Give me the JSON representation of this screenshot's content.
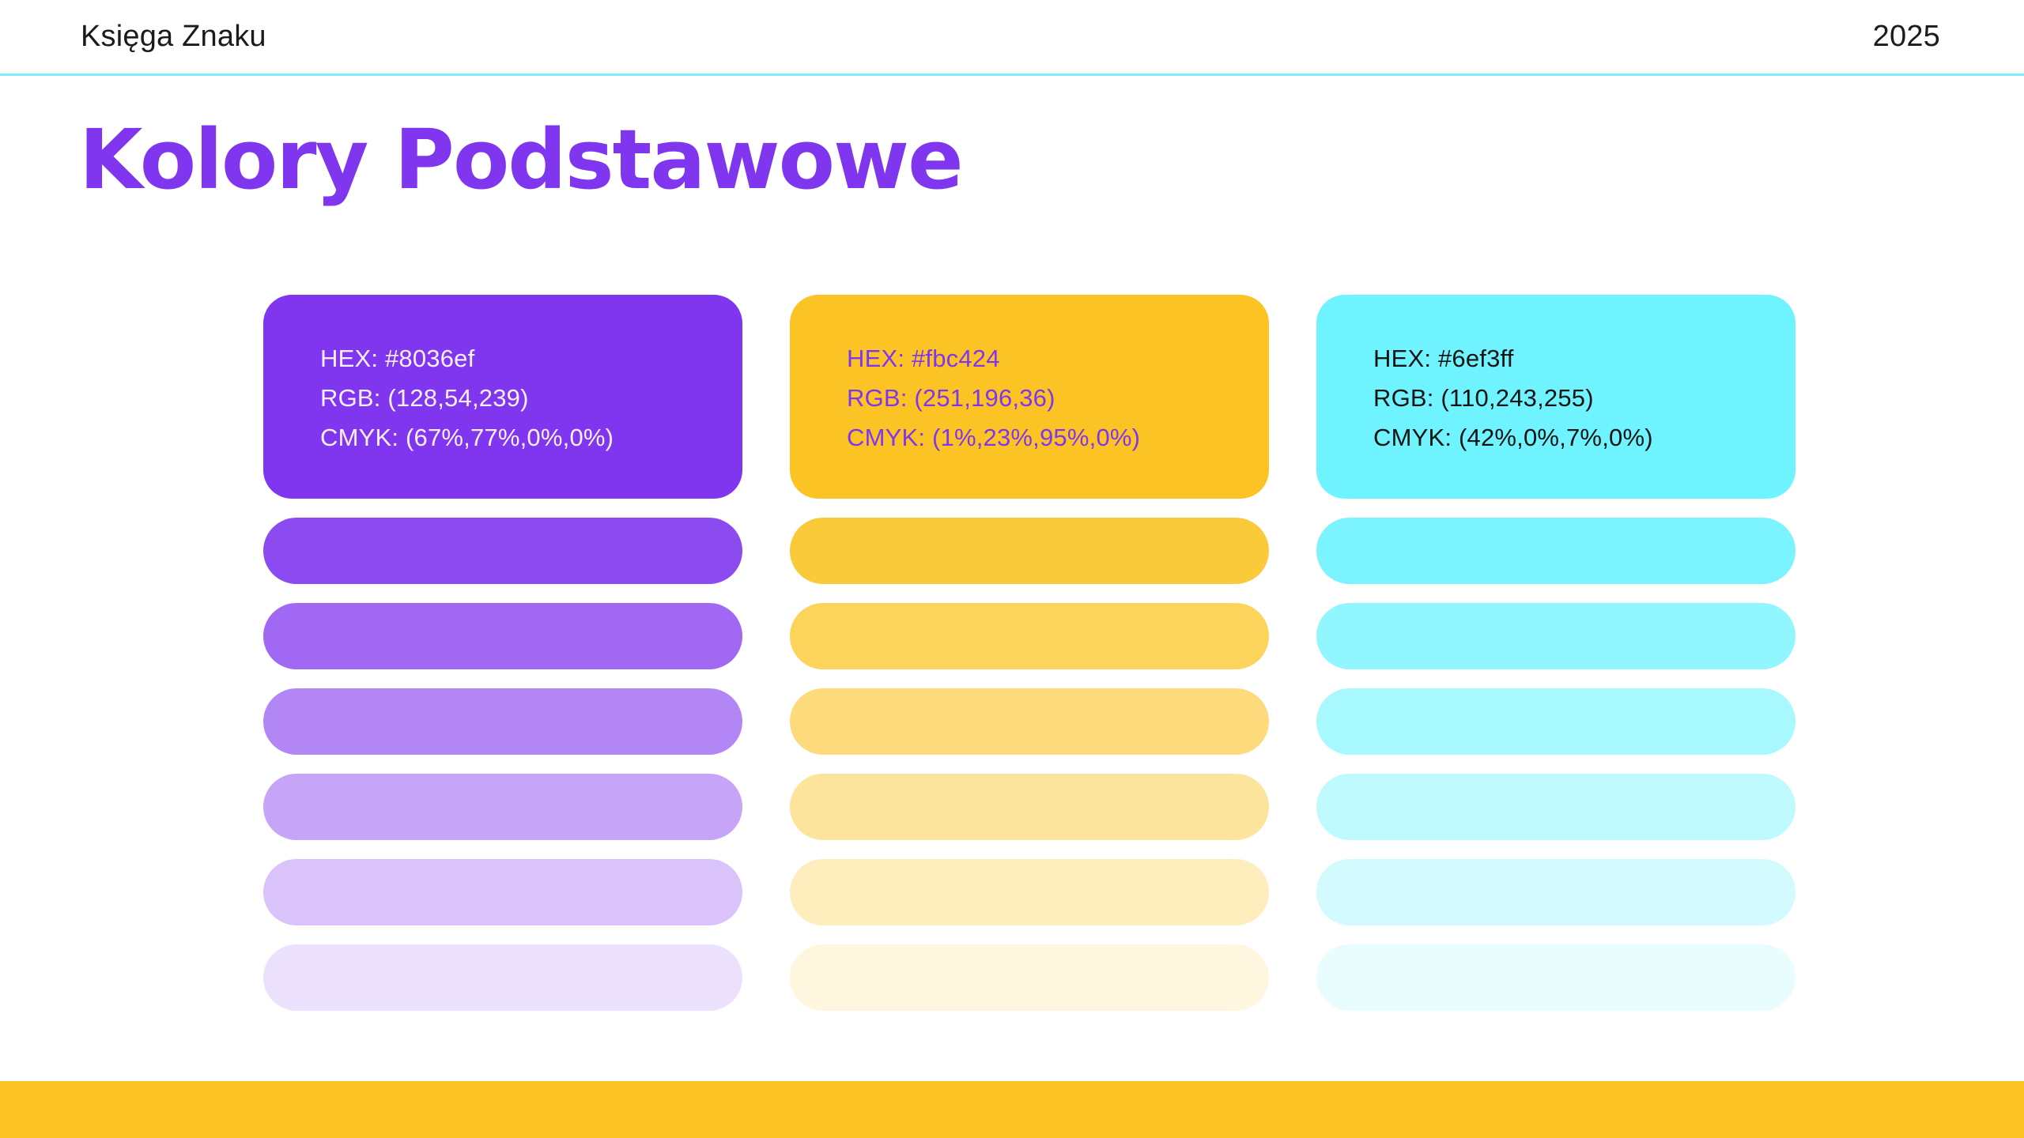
{
  "header": {
    "title": "Księga Znaku",
    "year": "2025"
  },
  "page": {
    "title": "Kolory Podstawowe"
  },
  "colors": {
    "brand_purple": "#8036ef",
    "brand_yellow": "#fbc424",
    "brand_cyan": "#6ef3ff",
    "header_divider": "#7deefa",
    "footer": "#fbc424",
    "header_text": "#1b1b1b",
    "title_text": "#8036ef"
  },
  "swatches": [
    {
      "name": "purple",
      "hex": "#8036ef",
      "text_color": "#f7effe",
      "lines": {
        "hex": "HEX: #8036ef",
        "rgb": "RGB: (128,54,239)",
        "cmyk": "CMYK: (67%,77%,0%,0%)"
      },
      "tints": [
        "#8c4af1",
        "#a068f3",
        "#b386f5",
        "#c6a5f8",
        "#d9c3fa",
        "#ece1fd"
      ]
    },
    {
      "name": "yellow",
      "hex": "#fbc424",
      "text_color": "#8036ef",
      "lines": {
        "hex": "HEX: #fbc424",
        "rgb": "RGB: (251,196,36)",
        "cmyk": "CMYK: (1%,23%,95%,0%)"
      },
      "tints": [
        "#fbca3a",
        "#fcd35b",
        "#fddb7c",
        "#fde49c",
        "#feedbd",
        "#fef6de"
      ]
    },
    {
      "name": "cyan",
      "hex": "#6ef3ff",
      "text_color": "#141414",
      "lines": {
        "hex": "HEX: #6ef3ff",
        "rgb": "RGB: (110,243,255)",
        "cmyk": "CMYK: (42%,0%,7%,0%)"
      },
      "tints": [
        "#7cf4ff",
        "#92f6ff",
        "#a8f8ff",
        "#befaff",
        "#d3fbff",
        "#e9fdff"
      ]
    }
  ]
}
